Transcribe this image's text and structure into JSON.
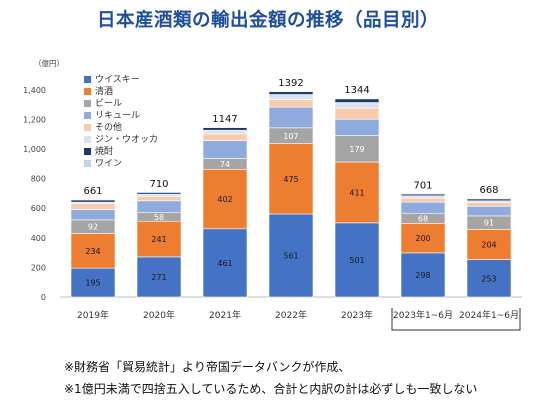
{
  "title": "日本産酒類の輸出金額の推移（品目別）",
  "notes": [
    "※財務省「貿易統計」より帝国データバンクが作成、",
    "※1億円未満で四捨五入しているため、合計と内訳の計は必ずしも一致しない"
  ],
  "chart_data": {
    "type": "bar",
    "stacked": true,
    "unit_label": "（億円）",
    "ylim": [
      0,
      1500
    ],
    "yticks": [
      "0",
      "200",
      "400",
      "600",
      "800",
      "1,000",
      "1,200",
      "1,400"
    ],
    "ytick_values": [
      0,
      200,
      400,
      600,
      800,
      1000,
      1200,
      1400
    ],
    "categories": [
      "2019年",
      "2020年",
      "2021年",
      "2022年",
      "2023年",
      "2023年1~6月",
      "2024年1~6月"
    ],
    "totals": [
      661,
      710,
      1147,
      1392,
      1344,
      701,
      668
    ],
    "legend_position": "top-left",
    "grid": false,
    "series": [
      {
        "name": "ウイスキー",
        "color": "#4472c4",
        "values": [
          195,
          271,
          461,
          561,
          501,
          298,
          253
        ],
        "labels": [
          "195",
          "271",
          "461",
          "561",
          "501",
          "298",
          "253"
        ]
      },
      {
        "name": "清酒",
        "color": "#ed7d31",
        "values": [
          234,
          241,
          402,
          475,
          411,
          200,
          204
        ],
        "labels": [
          "234",
          "241",
          "402",
          "475",
          "411",
          "200",
          "204"
        ]
      },
      {
        "name": "ビール",
        "color": "#a5a5a5",
        "values": [
          92,
          58,
          74,
          107,
          179,
          68,
          91
        ],
        "labels": [
          "92",
          "58",
          "74",
          "107",
          "179",
          "68",
          "91"
        ]
      },
      {
        "name": "リキュール",
        "color": "#8faadc",
        "values": [
          70,
          80,
          120,
          140,
          110,
          75,
          65
        ],
        "labels": []
      },
      {
        "name": "その他",
        "color": "#f8cbad",
        "values": [
          40,
          30,
          45,
          50,
          75,
          28,
          25
        ],
        "labels": []
      },
      {
        "name": "ジン・ウオッカ",
        "color": "#dae3f3",
        "values": [
          10,
          15,
          25,
          35,
          38,
          15,
          12
        ],
        "labels": []
      },
      {
        "name": "焼酎",
        "color": "#1f3864",
        "values": [
          15,
          12,
          18,
          20,
          25,
          12,
          13
        ],
        "labels": []
      },
      {
        "name": "ワイン",
        "color": "#c9d3e8",
        "values": [
          5,
          3,
          2,
          4,
          5,
          5,
          5
        ],
        "labels": []
      }
    ]
  }
}
